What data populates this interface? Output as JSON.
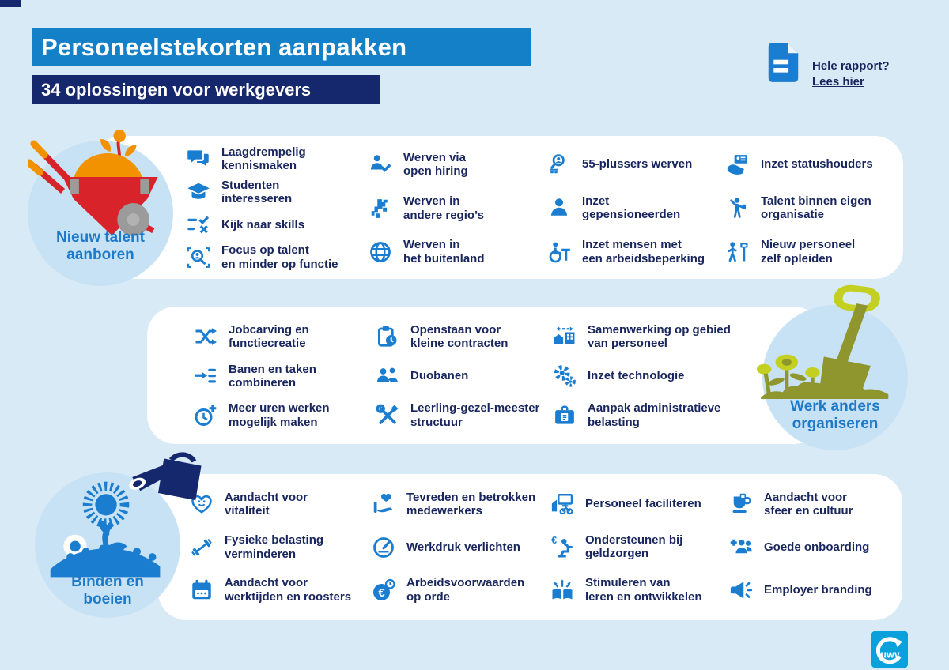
{
  "header": {
    "title": "Personeelstekorten aanpakken",
    "subtitle": "34 oplossingen voor werkgevers",
    "report": {
      "question": "Hele rapport?",
      "link": "Lees hier"
    }
  },
  "colors": {
    "background": "#d9eaf7",
    "panel": "#ffffff",
    "circle": "#c8e2f5",
    "accent_blue": "#1380c8",
    "navy": "#16286d",
    "icon_blue": "#1b7dd0",
    "label_blue": "#1e7ac9",
    "text_navy": "#19265e",
    "red": "#d8232a",
    "orange": "#f39200",
    "gray": "#9c9b9b",
    "olive": "#8f962d",
    "lime": "#c3d021",
    "logo_blue": "#0aa0dc"
  },
  "sections": [
    {
      "label": "Nieuw talent\naanboren",
      "illustration": "wheelbarrow",
      "columns": [
        {
          "items": [
            {
              "icon": "chat-icon",
              "label": "Laagdrempelig\nkennismaken"
            },
            {
              "icon": "graduation-cap-icon",
              "label": "Studenten\ninteresseren"
            },
            {
              "icon": "checklist-icon",
              "label": "Kijk naar skills"
            },
            {
              "icon": "search-talent-icon",
              "label": "Focus op talent\nen minder op functie"
            }
          ]
        },
        {
          "items": [
            {
              "icon": "person-check-icon",
              "label": "Werven via\nopen hiring"
            },
            {
              "icon": "netherlands-map-icon",
              "label": "Werven in\nandere regio’s"
            },
            {
              "icon": "globe-icon",
              "label": "Werven in\nhet buitenland"
            }
          ]
        },
        {
          "items": [
            {
              "icon": "search-senior-icon",
              "label": "55-plussers werven"
            },
            {
              "icon": "person-icon",
              "label": "Inzet\ngepensioneerden"
            },
            {
              "icon": "wheelchair-icon",
              "label": "Inzet mensen met\neen arbeidsbeperking"
            }
          ]
        },
        {
          "items": [
            {
              "icon": "hand-id-card-icon",
              "label": "Inzet statushouders"
            },
            {
              "icon": "person-waving-icon",
              "label": "Talent binnen eigen\norganisatie"
            },
            {
              "icon": "signpost-icon",
              "label": "Nieuw personeel\nzelf opleiden"
            }
          ]
        }
      ]
    },
    {
      "label": "Werk anders\norganiseren",
      "illustration": "shovel",
      "columns": [
        {
          "items": [
            {
              "icon": "shuffle-arrows-icon",
              "label": "Jobcarving en\nfunctiecreatie"
            },
            {
              "icon": "merge-tasks-icon",
              "label": "Banen en taken\ncombineren"
            },
            {
              "icon": "clock-plus-icon",
              "label": "Meer uren werken\nmogelijk maken"
            }
          ]
        },
        {
          "items": [
            {
              "icon": "clipboard-clock-icon",
              "label": "Openstaan voor\nkleine contracten"
            },
            {
              "icon": "duo-people-icon",
              "label": "Duobanen"
            },
            {
              "icon": "crossed-tools-icon",
              "label": "Leerling-gezel-meester\nstructuur"
            }
          ]
        },
        {
          "items": [
            {
              "icon": "cooperation-icon",
              "label": "Samenwerking op gebied\nvan personeel"
            },
            {
              "icon": "gears-icon",
              "label": "Inzet technologie"
            },
            {
              "icon": "briefcase-icon",
              "label": "Aanpak administratieve\nbelasting"
            }
          ]
        }
      ]
    },
    {
      "label": "Binden en\nboeien",
      "illustration": "flower-watering",
      "columns": [
        {
          "items": [
            {
              "icon": "heart-smile-icon",
              "label": "Aandacht voor\nvitaliteit"
            },
            {
              "icon": "dumbbell-icon",
              "label": "Fysieke belasting\nverminderen"
            },
            {
              "icon": "calendar-icon",
              "label": "Aandacht voor\nwerktijden en roosters"
            }
          ]
        },
        {
          "items": [
            {
              "icon": "hand-heart-icon",
              "label": "Tevreden en betrokken\nmedewerkers"
            },
            {
              "icon": "gauge-icon",
              "label": "Werkdruk verlichten"
            },
            {
              "icon": "euro-clock-icon",
              "label": "Arbeidsvoorwaarden\nop orde"
            }
          ]
        },
        {
          "items": [
            {
              "icon": "facilitate-icon",
              "label": "Personeel faciliteren"
            },
            {
              "icon": "euro-person-icon",
              "label": "Ondersteunen bij\ngeldzorgen"
            },
            {
              "icon": "book-arrows-icon",
              "label": "Stimuleren van\nleren en ontwikkelen"
            }
          ]
        },
        {
          "items": [
            {
              "icon": "coffee-cup-icon",
              "label": "Aandacht voor\nsfeer en cultuur"
            },
            {
              "icon": "add-people-icon",
              "label": "Goede onboarding"
            },
            {
              "icon": "megaphone-icon",
              "label": "Employer branding"
            }
          ]
        }
      ]
    }
  ],
  "footer": {
    "logo_text": "uwv"
  }
}
